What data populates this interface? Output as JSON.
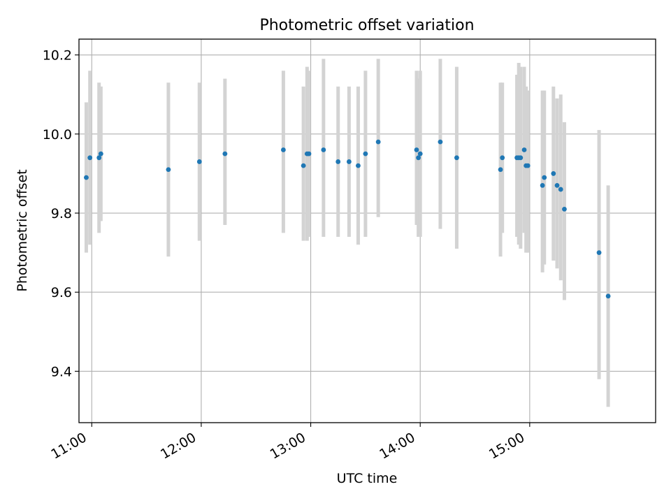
{
  "chart_data": {
    "type": "scatter",
    "title": "Photometric offset variation",
    "xlabel": "UTC time",
    "ylabel": "Photometric offset",
    "xlim": [
      "10:53",
      "16:09"
    ],
    "ylim": [
      9.27,
      10.24
    ],
    "x_ticks": [
      "11:00",
      "12:00",
      "13:00",
      "14:00",
      "15:00"
    ],
    "y_ticks": [
      9.4,
      9.6,
      9.8,
      10.0,
      10.2
    ],
    "grid": true,
    "point_color": "#1f77b4",
    "errorbar_color": "#d3d3d3",
    "points": [
      {
        "t": "10:57",
        "y": 9.89,
        "lo": 9.7,
        "hi": 10.08
      },
      {
        "t": "10:59",
        "y": 9.94,
        "lo": 9.72,
        "hi": 10.16
      },
      {
        "t": "11:04",
        "y": 9.94,
        "lo": 9.75,
        "hi": 10.13
      },
      {
        "t": "11:05",
        "y": 9.95,
        "lo": 9.78,
        "hi": 10.12
      },
      {
        "t": "11:42",
        "y": 9.91,
        "lo": 9.69,
        "hi": 10.13
      },
      {
        "t": "11:59",
        "y": 9.93,
        "lo": 9.73,
        "hi": 10.13
      },
      {
        "t": "12:13",
        "y": 9.95,
        "lo": 9.77,
        "hi": 10.14
      },
      {
        "t": "12:45",
        "y": 9.96,
        "lo": 9.75,
        "hi": 10.16
      },
      {
        "t": "12:56",
        "y": 9.92,
        "lo": 9.73,
        "hi": 10.12
      },
      {
        "t": "12:58",
        "y": 9.95,
        "lo": 9.73,
        "hi": 10.17
      },
      {
        "t": "12:59",
        "y": 9.95,
        "lo": 9.74,
        "hi": 10.16
      },
      {
        "t": "13:07",
        "y": 9.96,
        "lo": 9.74,
        "hi": 10.19
      },
      {
        "t": "13:15",
        "y": 9.93,
        "lo": 9.74,
        "hi": 10.12
      },
      {
        "t": "13:21",
        "y": 9.93,
        "lo": 9.74,
        "hi": 10.12
      },
      {
        "t": "13:26",
        "y": 9.92,
        "lo": 9.72,
        "hi": 10.12
      },
      {
        "t": "13:30",
        "y": 9.95,
        "lo": 9.74,
        "hi": 10.16
      },
      {
        "t": "13:37",
        "y": 9.98,
        "lo": 9.79,
        "hi": 10.19
      },
      {
        "t": "13:58",
        "y": 9.96,
        "lo": 9.77,
        "hi": 10.16
      },
      {
        "t": "13:59",
        "y": 9.94,
        "lo": 9.74,
        "hi": 10.14
      },
      {
        "t": "14:00",
        "y": 9.95,
        "lo": 9.74,
        "hi": 10.16
      },
      {
        "t": "14:11",
        "y": 9.98,
        "lo": 9.76,
        "hi": 10.19
      },
      {
        "t": "14:20",
        "y": 9.94,
        "lo": 9.71,
        "hi": 10.17
      },
      {
        "t": "14:44",
        "y": 9.91,
        "lo": 9.69,
        "hi": 10.13
      },
      {
        "t": "14:45",
        "y": 9.94,
        "lo": 9.75,
        "hi": 10.13
      },
      {
        "t": "14:53",
        "y": 9.94,
        "lo": 9.74,
        "hi": 10.15
      },
      {
        "t": "14:54",
        "y": 9.94,
        "lo": 9.72,
        "hi": 10.18
      },
      {
        "t": "14:55",
        "y": 9.94,
        "lo": 9.71,
        "hi": 10.17
      },
      {
        "t": "14:57",
        "y": 9.96,
        "lo": 9.75,
        "hi": 10.17
      },
      {
        "t": "14:58",
        "y": 9.92,
        "lo": 9.7,
        "hi": 10.12
      },
      {
        "t": "14:59",
        "y": 9.92,
        "lo": 9.7,
        "hi": 10.11
      },
      {
        "t": "15:07",
        "y": 9.87,
        "lo": 9.65,
        "hi": 10.11
      },
      {
        "t": "15:08",
        "y": 9.89,
        "lo": 9.67,
        "hi": 10.11
      },
      {
        "t": "15:13",
        "y": 9.9,
        "lo": 9.68,
        "hi": 10.12
      },
      {
        "t": "15:15",
        "y": 9.87,
        "lo": 9.66,
        "hi": 10.09
      },
      {
        "t": "15:17",
        "y": 9.86,
        "lo": 9.63,
        "hi": 10.1
      },
      {
        "t": "15:19",
        "y": 9.81,
        "lo": 9.58,
        "hi": 10.03
      },
      {
        "t": "15:38",
        "y": 9.7,
        "lo": 9.38,
        "hi": 10.01
      },
      {
        "t": "15:43",
        "y": 9.59,
        "lo": 9.31,
        "hi": 9.87
      }
    ]
  }
}
